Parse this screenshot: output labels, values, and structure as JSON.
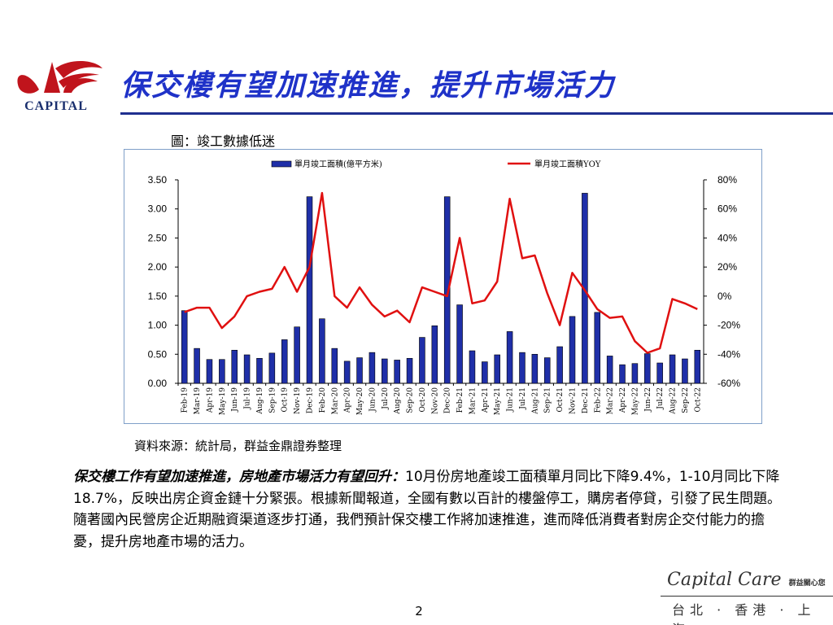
{
  "slide": {
    "title": "保交樓有望加速推進，提升市場活力",
    "logo_text": "CAPITAL",
    "figure_caption": "圖：竣工數據低迷",
    "source": "資料來源：統計局，群益金鼎證券整理",
    "body_lead": "保交樓工作有望加速推進，房地產市場活力有望回升：",
    "body_text": "10月份房地產竣工面積單月同比下降9.4%，1-10月同比下降18.7%，反映出房企資金鏈十分緊張。根據新聞報道，全國有數以百計的樓盤停工，購房者停貸，引發了民生問題。隨著國內民營房企近期融資渠道逐步打通，我們預計保交樓工作將加速推進，進而降低消費者對房企交付能力的擔憂，提升房地產市場的活力。",
    "page_number": "2",
    "brand_script": "Capital Care",
    "brand_tagline": "群益關心您",
    "cities": "台北 · 香港 · 上海"
  },
  "colors": {
    "title": "#1f32c8",
    "bar": "#1f2fa8",
    "line": "#e01010",
    "frame": "#7f9fc8"
  },
  "chart_data": {
    "type": "bar+line",
    "categories": [
      "Feb-19",
      "Mar-19",
      "Apr-19",
      "May-19",
      "Jun-19",
      "Jul-19",
      "Aug-19",
      "Sep-19",
      "Oct-19",
      "Nov-19",
      "Dec-19",
      "Feb-20",
      "Mar-20",
      "Apr-20",
      "May-20",
      "Jun-20",
      "Jul-20",
      "Aug-20",
      "Sep-20",
      "Oct-20",
      "Nov-20",
      "Dec-20",
      "Feb-21",
      "Mar-21",
      "Apr-21",
      "May-21",
      "Jun-21",
      "Jul-21",
      "Aug-21",
      "Sep-21",
      "Oct-21",
      "Nov-21",
      "Dec-21",
      "Feb-22",
      "Mar-22",
      "Apr-22",
      "May-22",
      "Jun-22",
      "Jul-22",
      "Aug-22",
      "Sep-22",
      "Oct-22"
    ],
    "series": [
      {
        "name": "單月竣工面積(億平方米)",
        "type": "bar",
        "axis": "left",
        "values": [
          1.25,
          0.6,
          0.41,
          0.41,
          0.57,
          0.49,
          0.43,
          0.52,
          0.75,
          0.97,
          3.21,
          1.11,
          0.6,
          0.38,
          0.44,
          0.53,
          0.42,
          0.4,
          0.43,
          0.79,
          0.99,
          3.21,
          1.35,
          0.56,
          0.37,
          0.49,
          0.89,
          0.53,
          0.5,
          0.44,
          0.63,
          1.15,
          3.27,
          1.22,
          0.47,
          0.32,
          0.34,
          0.51,
          0.35,
          0.49,
          0.42,
          0.57
        ]
      },
      {
        "name": "單月竣工面積YOY",
        "type": "line",
        "axis": "right",
        "values": [
          -11,
          -8,
          -8,
          -22,
          -14,
          0,
          3,
          5,
          20,
          3,
          20,
          71,
          0,
          -8,
          6,
          -6,
          -14,
          -10,
          -18,
          6,
          3,
          0,
          40,
          -5,
          -3,
          10,
          67,
          26,
          28,
          2,
          -20,
          16,
          4,
          -9,
          -15,
          -14,
          -31,
          -39,
          -36,
          -2,
          -5,
          -9
        ]
      }
    ],
    "y_left": {
      "min": 0,
      "max": 3.5,
      "ticks": [
        "0.00",
        "0.50",
        "1.00",
        "1.50",
        "2.00",
        "2.50",
        "3.00",
        "3.50"
      ]
    },
    "y_right": {
      "min": -60,
      "max": 80,
      "ticks": [
        "-60%",
        "-40%",
        "-20%",
        "0%",
        "20%",
        "40%",
        "60%",
        "80%"
      ]
    },
    "legend_position": "top",
    "grid": false
  }
}
